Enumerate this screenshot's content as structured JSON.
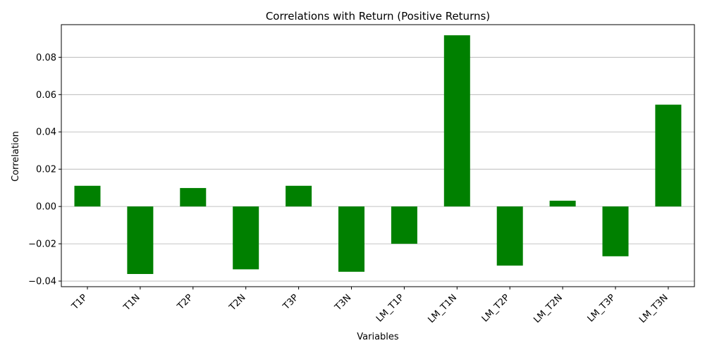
{
  "chart_data": {
    "type": "bar",
    "title": "Correlations with Return (Positive Returns)",
    "xlabel": "Variables",
    "ylabel": "Correlation",
    "categories": [
      "T1P",
      "T1N",
      "T2P",
      "T2N",
      "T3P",
      "T3N",
      "LM_T1P",
      "LM_T1N",
      "LM_T2P",
      "LM_T2N",
      "LM_T3P",
      "LM_T3N"
    ],
    "values": [
      0.0111,
      -0.0362,
      0.0099,
      -0.0337,
      0.0111,
      -0.035,
      -0.02,
      0.0918,
      -0.0317,
      0.0031,
      -0.0267,
      0.0546
    ],
    "ylim": [
      -0.043,
      0.0975
    ],
    "yticks": [
      -0.04,
      -0.02,
      0.0,
      0.02,
      0.04,
      0.06,
      0.08
    ],
    "ytick_labels": [
      "−0.04",
      "−0.02",
      "0.00",
      "0.02",
      "0.04",
      "0.06",
      "0.08"
    ],
    "grid": "y",
    "bar_color": "#008000"
  }
}
